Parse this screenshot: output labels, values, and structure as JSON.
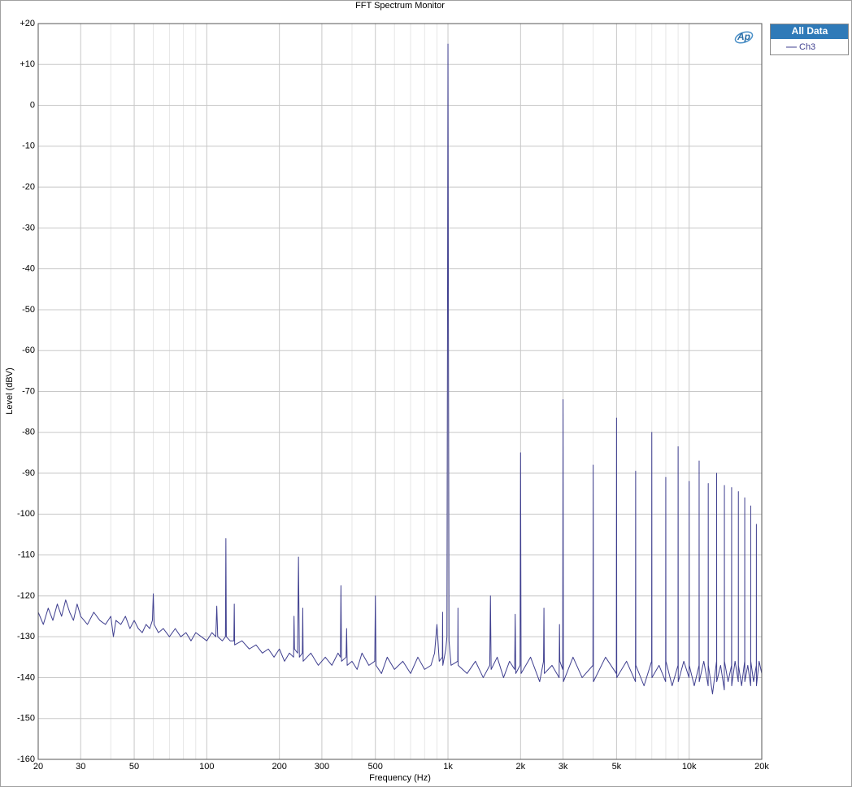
{
  "chart_data": {
    "type": "line",
    "title": "FFT Spectrum Monitor",
    "xlabel": "Frequency (Hz)",
    "ylabel": "Level (dBV)",
    "logo": "Ap",
    "legend_title": "All Data",
    "legend": "upper right outside",
    "xscale": "log",
    "grid": true,
    "xlim": [
      20,
      20000
    ],
    "ylim": [
      -160,
      20
    ],
    "xticks": [
      20,
      30,
      50,
      100,
      200,
      300,
      500,
      {
        "value": 1000,
        "label": "1k"
      },
      {
        "value": 2000,
        "label": "2k"
      },
      {
        "value": 3000,
        "label": "3k"
      },
      {
        "value": 5000,
        "label": "5k"
      },
      {
        "value": 10000,
        "label": "10k"
      },
      {
        "value": 20000,
        "label": "20k"
      }
    ],
    "xminorticks": [
      40,
      60,
      70,
      80,
      90,
      400,
      600,
      700,
      800,
      900,
      4000,
      6000,
      7000,
      8000,
      9000
    ],
    "yticks": [
      {
        "value": 20,
        "label": "+20"
      },
      {
        "value": 10,
        "label": "+10"
      },
      0,
      -10,
      -20,
      -30,
      -40,
      -50,
      -60,
      -70,
      -80,
      -90,
      -100,
      -110,
      -120,
      -130,
      -140,
      -150,
      -160
    ],
    "x": [
      20,
      21,
      22,
      23,
      24,
      25,
      26,
      27,
      28,
      29,
      30,
      32,
      34,
      36,
      38,
      40,
      41,
      42,
      44,
      46,
      48,
      50,
      52,
      54,
      56,
      58,
      59.5,
      60,
      60.5,
      63,
      66,
      70,
      74,
      78,
      82,
      86,
      90,
      95,
      100,
      105,
      109,
      110,
      111,
      116,
      119.5,
      120,
      120.5,
      125,
      129.5,
      130,
      130.5,
      140,
      150,
      160,
      170,
      180,
      190,
      200,
      210,
      220,
      229,
      230,
      231,
      238,
      240,
      242,
      249,
      250,
      251,
      270,
      290,
      310,
      330,
      350,
      358,
      360,
      362,
      378,
      380,
      382,
      400,
      420,
      440,
      470,
      497,
      500,
      503,
      530,
      560,
      600,
      650,
      700,
      750,
      800,
      850,
      880,
      900,
      920,
      948,
      950,
      952,
      980,
      990,
      995,
      1000,
      1005,
      1010,
      1030,
      1098,
      1100,
      1102,
      1200,
      1300,
      1400,
      1490,
      1500,
      1510,
      1600,
      1700,
      1800,
      1890,
      1900,
      1910,
      1990,
      2000,
      2010,
      2200,
      2400,
      2490,
      2500,
      2510,
      2700,
      2890,
      2900,
      2910,
      2990,
      3000,
      3010,
      3300,
      3600,
      3990,
      4000,
      4010,
      4500,
      4990,
      5000,
      5010,
      5500,
      5990,
      6000,
      6010,
      6500,
      6990,
      7000,
      7010,
      7500,
      7990,
      8000,
      8010,
      8500,
      8990,
      9000,
      9010,
      9500,
      9990,
      10000,
      10010,
      10500,
      10990,
      11000,
      11010,
      11500,
      11990,
      12000,
      12010,
      12500,
      12990,
      13000,
      13010,
      13500,
      13990,
      14000,
      14010,
      14500,
      14990,
      15000,
      15010,
      15500,
      15990,
      16000,
      16010,
      16500,
      16990,
      17000,
      17010,
      17500,
      17990,
      18000,
      18010,
      18500,
      18990,
      19000,
      19010,
      19500,
      20000
    ],
    "series": [
      {
        "name": "Ch3",
        "color": "#3f3f8f",
        "values": [
          -124,
          -127,
          -123,
          -126,
          -122,
          -125,
          -121,
          -124,
          -126,
          -122,
          -125,
          -127,
          -124,
          -126,
          -127,
          -125,
          -130,
          -126,
          -127,
          -125,
          -128,
          -126,
          -128,
          -129,
          -127,
          -128,
          -126,
          -119.5,
          -127,
          -129,
          -128,
          -130,
          -128,
          -130,
          -129,
          -131,
          -129,
          -130,
          -131,
          -129,
          -130,
          -122.5,
          -130,
          -131,
          -130,
          -106,
          -130,
          -131,
          -131,
          -122,
          -132,
          -131,
          -133,
          -132,
          -134,
          -133,
          -135,
          -133,
          -136,
          -134,
          -135,
          -125,
          -133,
          -134,
          -110.5,
          -135,
          -134,
          -123,
          -136,
          -134,
          -137,
          -135,
          -137,
          -134,
          -135,
          -117.5,
          -136,
          -135,
          -128,
          -137,
          -136,
          -138,
          -134,
          -137,
          -136,
          -120,
          -137,
          -139,
          -135,
          -138,
          -136,
          -139,
          -135,
          -138,
          -137,
          -134,
          -127,
          -136,
          -135,
          -124,
          -137,
          -133,
          -130,
          -60,
          15,
          -60,
          -131,
          -137,
          -136,
          -123,
          -137,
          -139,
          -136,
          -140,
          -137,
          -120,
          -138,
          -135,
          -140,
          -136,
          -138,
          -124.5,
          -139,
          -137,
          -85,
          -139,
          -135,
          -141,
          -136,
          -123,
          -139,
          -137,
          -140,
          -127,
          -136,
          -138,
          -72,
          -141,
          -135,
          -140,
          -137,
          -88,
          -141,
          -135,
          -139,
          -76.5,
          -140,
          -136,
          -141,
          -89.5,
          -137,
          -142,
          -136,
          -80,
          -140,
          -137,
          -141,
          -91,
          -136,
          -142,
          -137,
          -83.5,
          -141,
          -136,
          -140,
          -92,
          -137,
          -142,
          -137,
          -87,
          -141,
          -136,
          -142,
          -92.5,
          -137,
          -144,
          -136,
          -90,
          -141,
          -137,
          -143,
          -93,
          -136,
          -141,
          -137,
          -93.5,
          -142,
          -136,
          -141,
          -94.5,
          -137,
          -142,
          -136,
          -96,
          -141,
          -137,
          -142,
          -98,
          -136,
          -141,
          -137,
          -102.5,
          -142,
          -136,
          -139
        ]
      }
    ]
  }
}
